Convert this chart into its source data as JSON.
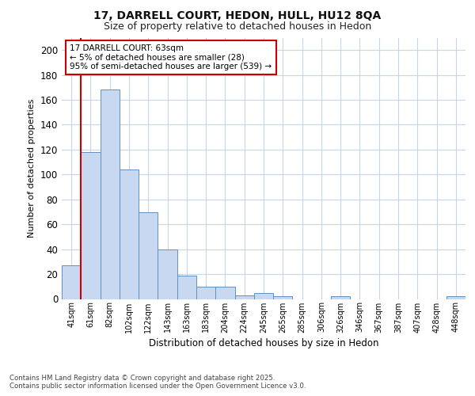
{
  "title1": "17, DARRELL COURT, HEDON, HULL, HU12 8QA",
  "title2": "Size of property relative to detached houses in Hedon",
  "xlabel": "Distribution of detached houses by size in Hedon",
  "ylabel": "Number of detached properties",
  "categories": [
    "41sqm",
    "61sqm",
    "82sqm",
    "102sqm",
    "122sqm",
    "143sqm",
    "163sqm",
    "183sqm",
    "204sqm",
    "224sqm",
    "245sqm",
    "265sqm",
    "285sqm",
    "306sqm",
    "326sqm",
    "346sqm",
    "367sqm",
    "387sqm",
    "407sqm",
    "428sqm",
    "448sqm"
  ],
  "values": [
    27,
    118,
    168,
    104,
    70,
    40,
    19,
    10,
    10,
    3,
    5,
    2,
    0,
    0,
    2,
    0,
    0,
    0,
    0,
    0,
    2
  ],
  "bar_color": "#c8d8f0",
  "bar_edge_color": "#6090c0",
  "vline_x_index": 1,
  "vline_color": "#cc0000",
  "ylim": [
    0,
    210
  ],
  "yticks": [
    0,
    20,
    40,
    60,
    80,
    100,
    120,
    140,
    160,
    180,
    200
  ],
  "annotation_text": "17 DARRELL COURT: 63sqm\n← 5% of detached houses are smaller (28)\n95% of semi-detached houses are larger (539) →",
  "annotation_box_facecolor": "#ffffff",
  "annotation_box_edgecolor": "#cc0000",
  "footer_line1": "Contains HM Land Registry data © Crown copyright and database right 2025.",
  "footer_line2": "Contains public sector information licensed under the Open Government Licence v3.0.",
  "fig_bg_color": "#ffffff",
  "plot_bg_color": "#ffffff",
  "grid_color": "#c8d4e8"
}
